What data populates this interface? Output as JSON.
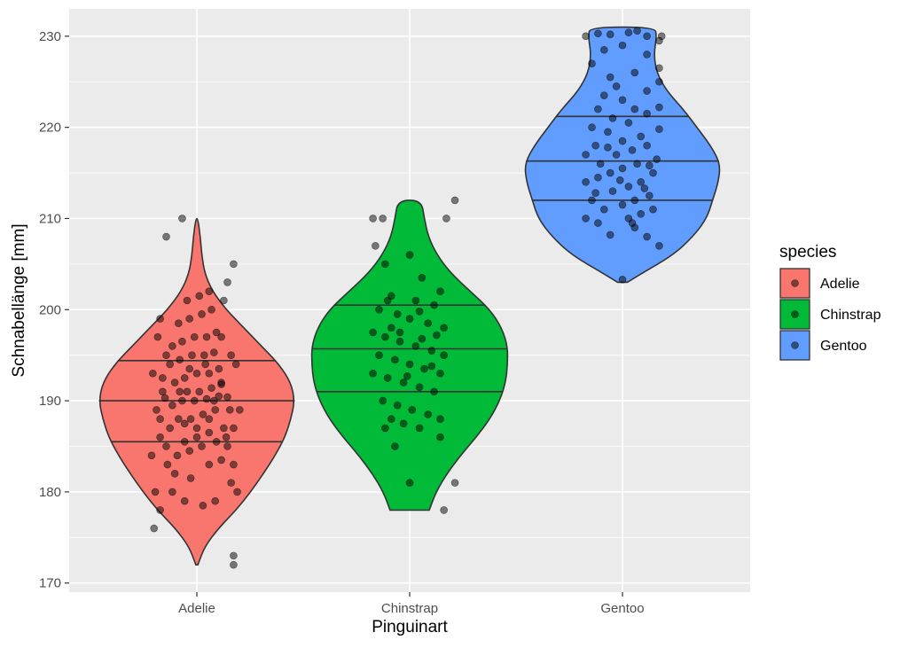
{
  "chart_data": {
    "type": "violin",
    "xlabel": "Pinguinart",
    "ylabel": "Schnabellänge [mm]",
    "categories": [
      "Adelie",
      "Chinstrap",
      "Gentoo"
    ],
    "ylim": [
      169,
      233
    ],
    "y_ticks": [
      170,
      180,
      190,
      200,
      210,
      220,
      230
    ],
    "grid": true,
    "legend": {
      "title": "species",
      "placement": "right",
      "entries": [
        "Adelie",
        "Chinstrap",
        "Gentoo"
      ]
    },
    "colors": {
      "Adelie": "#f8766d",
      "Chinstrap": "#00ba38",
      "Gentoo": "#619cff",
      "panel": "#ebebeb",
      "grid": "#ffffff",
      "point": "#000000"
    },
    "series": [
      {
        "name": "Adelie",
        "min": 172,
        "max": 210,
        "quantiles": [
          185.5,
          190,
          194.4
        ],
        "density": [
          [
            172,
            0.01
          ],
          [
            174,
            0.08
          ],
          [
            176,
            0.22
          ],
          [
            178,
            0.4
          ],
          [
            180,
            0.55
          ],
          [
            182,
            0.68
          ],
          [
            184,
            0.8
          ],
          [
            186,
            0.9
          ],
          [
            188,
            0.96
          ],
          [
            190,
            1.0
          ],
          [
            192,
            0.96
          ],
          [
            194,
            0.84
          ],
          [
            196,
            0.66
          ],
          [
            198,
            0.48
          ],
          [
            200,
            0.3
          ],
          [
            202,
            0.16
          ],
          [
            204,
            0.08
          ],
          [
            206,
            0.05
          ],
          [
            208,
            0.035
          ],
          [
            210,
            0.01
          ]
        ],
        "points": [
          [
            -0.35,
            176
          ],
          [
            -0.3,
            178
          ],
          [
            -0.34,
            180
          ],
          [
            -0.37,
            184
          ],
          [
            -0.3,
            186
          ],
          [
            -0.33,
            189
          ],
          [
            -0.28,
            191
          ],
          [
            -0.36,
            193
          ],
          [
            -0.25,
            195
          ],
          [
            -0.32,
            197
          ],
          [
            -0.3,
            199
          ],
          [
            -0.25,
            208
          ],
          [
            -0.12,
            210
          ],
          [
            0.3,
            173
          ],
          [
            0.3,
            172
          ],
          [
            0.3,
            205
          ],
          [
            0.25,
            203
          ],
          [
            0.22,
            201
          ],
          [
            0.28,
            195
          ],
          [
            0.32,
            194
          ],
          [
            0.2,
            192
          ],
          [
            0.35,
            189
          ],
          [
            0.3,
            187
          ],
          [
            0.25,
            185
          ],
          [
            0.3,
            183
          ],
          [
            0.28,
            181
          ],
          [
            0.33,
            180
          ],
          [
            -0.2,
            180
          ],
          [
            -0.1,
            179
          ],
          [
            0.05,
            178.5
          ],
          [
            0.15,
            179
          ],
          [
            -0.18,
            182
          ],
          [
            -0.05,
            181.5
          ],
          [
            0.1,
            183
          ],
          [
            0.2,
            183.5
          ],
          [
            -0.25,
            185
          ],
          [
            -0.1,
            185.5
          ],
          [
            0.0,
            186
          ],
          [
            0.1,
            186.5
          ],
          [
            0.22,
            187
          ],
          [
            -0.22,
            187
          ],
          [
            -0.15,
            188
          ],
          [
            -0.05,
            188
          ],
          [
            0.05,
            188.5
          ],
          [
            0.15,
            189
          ],
          [
            -0.2,
            189.5
          ],
          [
            -0.12,
            190
          ],
          [
            -0.02,
            190
          ],
          [
            0.08,
            190.2
          ],
          [
            0.18,
            190.5
          ],
          [
            0.25,
            190.4
          ],
          [
            -0.26,
            190.3
          ],
          [
            -0.08,
            191
          ],
          [
            0.02,
            191
          ],
          [
            0.12,
            191.4
          ],
          [
            0.2,
            191.8
          ],
          [
            -0.18,
            192
          ],
          [
            -0.1,
            192.5
          ],
          [
            0.0,
            193
          ],
          [
            0.1,
            193
          ],
          [
            0.18,
            193.5
          ],
          [
            -0.22,
            194
          ],
          [
            -0.14,
            194.5
          ],
          [
            -0.04,
            195
          ],
          [
            0.06,
            195
          ],
          [
            0.14,
            195.3
          ],
          [
            -0.2,
            196
          ],
          [
            -0.12,
            196.5
          ],
          [
            -0.02,
            197
          ],
          [
            0.08,
            197
          ],
          [
            0.16,
            197.5
          ],
          [
            -0.15,
            198.5
          ],
          [
            -0.06,
            199
          ],
          [
            0.04,
            199.5
          ],
          [
            0.12,
            200
          ],
          [
            -0.08,
            201
          ],
          [
            0.02,
            201.5
          ],
          [
            0.1,
            202
          ],
          [
            -0.28,
            192.5
          ],
          [
            -0.3,
            188
          ],
          [
            0.27,
            189
          ],
          [
            -0.24,
            183
          ],
          [
            0.24,
            186
          ],
          [
            -0.16,
            184
          ],
          [
            -0.06,
            184.5
          ],
          [
            0.04,
            185
          ],
          [
            0.16,
            185.5
          ],
          [
            -0.1,
            187.5
          ],
          [
            0.0,
            187
          ],
          [
            0.1,
            188
          ],
          [
            0.07,
            194
          ],
          [
            -0.06,
            193.5
          ],
          [
            0.14,
            190
          ],
          [
            -0.14,
            191
          ],
          [
            0.2,
            197
          ]
        ]
      },
      {
        "name": "Chinstrap",
        "min": 178,
        "max": 212,
        "quantiles": [
          191,
          195.7,
          200.5
        ],
        "density": [
          [
            178,
            0.2
          ],
          [
            180,
            0.27
          ],
          [
            182,
            0.38
          ],
          [
            184,
            0.52
          ],
          [
            186,
            0.68
          ],
          [
            188,
            0.82
          ],
          [
            190,
            0.92
          ],
          [
            192,
            0.98
          ],
          [
            194,
            1.0
          ],
          [
            196,
            1.0
          ],
          [
            198,
            0.94
          ],
          [
            200,
            0.82
          ],
          [
            202,
            0.62
          ],
          [
            204,
            0.42
          ],
          [
            206,
            0.28
          ],
          [
            208,
            0.19
          ],
          [
            210,
            0.15
          ],
          [
            212,
            0.12
          ]
        ],
        "points": [
          [
            0.37,
            212
          ],
          [
            0.3,
            210
          ],
          [
            -0.3,
            210
          ],
          [
            -0.22,
            210
          ],
          [
            -0.28,
            207
          ],
          [
            -0.2,
            205
          ],
          [
            0.0,
            206
          ],
          [
            0.1,
            203.5
          ],
          [
            0.25,
            202
          ],
          [
            -0.15,
            201.5
          ],
          [
            0.05,
            201
          ],
          [
            0.2,
            200.5
          ],
          [
            -0.25,
            200
          ],
          [
            -0.1,
            199.5
          ],
          [
            0.0,
            199
          ],
          [
            0.15,
            198.5
          ],
          [
            0.28,
            198
          ],
          [
            -0.3,
            197.5
          ],
          [
            -0.2,
            197
          ],
          [
            -0.08,
            196.5
          ],
          [
            0.05,
            196
          ],
          [
            0.18,
            195.5
          ],
          [
            0.28,
            195
          ],
          [
            -0.25,
            195
          ],
          [
            -0.12,
            194.5
          ],
          [
            0.0,
            194
          ],
          [
            0.12,
            193.5
          ],
          [
            0.25,
            193
          ],
          [
            -0.3,
            193
          ],
          [
            -0.18,
            192.5
          ],
          [
            -0.05,
            192
          ],
          [
            0.08,
            191.5
          ],
          [
            0.2,
            191
          ],
          [
            -0.22,
            190
          ],
          [
            -0.1,
            189.5
          ],
          [
            0.02,
            189
          ],
          [
            0.15,
            188.5
          ],
          [
            0.25,
            188
          ],
          [
            -0.15,
            188
          ],
          [
            -0.05,
            187.5
          ],
          [
            0.08,
            187
          ],
          [
            -0.2,
            187
          ],
          [
            0.25,
            186
          ],
          [
            -0.12,
            185
          ],
          [
            0.0,
            181
          ],
          [
            0.37,
            181
          ],
          [
            0.28,
            178
          ],
          [
            -0.08,
            197.5
          ],
          [
            0.1,
            196.8
          ],
          [
            -0.15,
            198
          ],
          [
            0.18,
            193.8
          ],
          [
            -0.02,
            192.7
          ],
          [
            0.08,
            199.8
          ],
          [
            -0.18,
            201
          ],
          [
            0.22,
            197.2
          ]
        ]
      },
      {
        "name": "Gentoo",
        "min": 203,
        "max": 231,
        "quantiles": [
          212,
          216.3,
          221.2
        ],
        "density": [
          [
            203,
            0.05
          ],
          [
            204,
            0.2
          ],
          [
            206,
            0.52
          ],
          [
            208,
            0.72
          ],
          [
            210,
            0.86
          ],
          [
            212,
            0.92
          ],
          [
            214,
            0.98
          ],
          [
            216,
            1.0
          ],
          [
            218,
            0.9
          ],
          [
            220,
            0.76
          ],
          [
            222,
            0.62
          ],
          [
            224,
            0.45
          ],
          [
            226,
            0.35
          ],
          [
            228,
            0.32
          ],
          [
            230,
            0.35
          ],
          [
            231,
            0.33
          ]
        ],
        "points": [
          [
            0.0,
            203.3
          ],
          [
            0.3,
            207
          ],
          [
            0.2,
            208
          ],
          [
            -0.1,
            208.2
          ],
          [
            0.1,
            209
          ],
          [
            -0.2,
            209.5
          ],
          [
            -0.3,
            210
          ],
          [
            0.05,
            210
          ],
          [
            0.15,
            210.5
          ],
          [
            0.25,
            211
          ],
          [
            -0.15,
            211
          ],
          [
            0.0,
            211.5
          ],
          [
            0.1,
            212
          ],
          [
            -0.25,
            212
          ],
          [
            0.22,
            212.5
          ],
          [
            -0.08,
            213
          ],
          [
            0.05,
            213.5
          ],
          [
            0.15,
            214
          ],
          [
            -0.3,
            214
          ],
          [
            -0.2,
            214.5
          ],
          [
            0.25,
            215
          ],
          [
            -0.1,
            215
          ],
          [
            0.0,
            215.5
          ],
          [
            0.12,
            216
          ],
          [
            -0.18,
            216
          ],
          [
            0.28,
            216.5
          ],
          [
            -0.3,
            217
          ],
          [
            -0.05,
            217
          ],
          [
            0.08,
            217.5
          ],
          [
            0.2,
            218
          ],
          [
            -0.22,
            218
          ],
          [
            0.0,
            218.5
          ],
          [
            0.15,
            219
          ],
          [
            -0.12,
            219.5
          ],
          [
            0.3,
            219.8
          ],
          [
            -0.25,
            220
          ],
          [
            0.05,
            220.5
          ],
          [
            -0.08,
            221
          ],
          [
            0.2,
            221.5
          ],
          [
            -0.2,
            222
          ],
          [
            0.1,
            222
          ],
          [
            0.3,
            222.2
          ],
          [
            0.0,
            223
          ],
          [
            -0.15,
            223.5
          ],
          [
            0.2,
            224
          ],
          [
            -0.05,
            224.5
          ],
          [
            0.3,
            225
          ],
          [
            -0.1,
            225.5
          ],
          [
            0.1,
            226
          ],
          [
            0.3,
            226.5
          ],
          [
            -0.25,
            227
          ],
          [
            0.2,
            228
          ],
          [
            -0.15,
            228.5
          ],
          [
            0.0,
            229
          ],
          [
            0.3,
            229.5
          ],
          [
            -0.3,
            230
          ],
          [
            -0.1,
            230.2
          ],
          [
            0.05,
            230.4
          ],
          [
            0.2,
            230
          ],
          [
            0.32,
            230
          ],
          [
            -0.2,
            230.3
          ],
          [
            0.12,
            230.6
          ],
          [
            -0.22,
            212.8
          ],
          [
            0.18,
            213.3
          ],
          [
            -0.12,
            217.8
          ],
          [
            0.22,
            215.8
          ],
          [
            -0.02,
            214.2
          ],
          [
            0.08,
            209.5
          ]
        ]
      }
    ]
  }
}
